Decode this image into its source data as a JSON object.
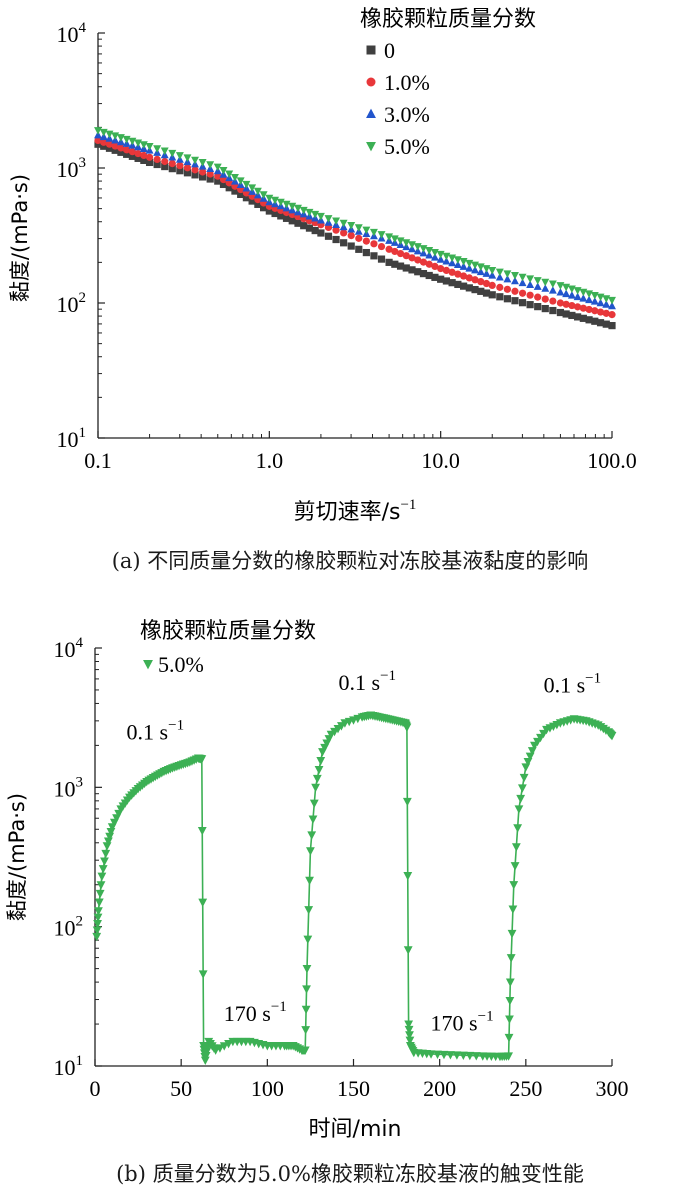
{
  "chart_data": [
    {
      "type": "scatter",
      "panel_caption": "(a) 不同质量分数的橡胶颗粒对冻胶基液黏度的影响",
      "xlabel": "剪切速率/s",
      "xlabel_sup": "−1",
      "ylabel": "黏度/(mPa·s)",
      "xscale": "log",
      "yscale": "log",
      "xlim": [
        0.1,
        100
      ],
      "ylim": [
        10,
        10000
      ],
      "x_ticks": [
        {
          "v": 0.1,
          "label": "0.1"
        },
        {
          "v": 1,
          "label": "1.0"
        },
        {
          "v": 10,
          "label": "10.0"
        },
        {
          "v": 100,
          "label": "100.0"
        }
      ],
      "y_ticks": [
        {
          "v": 10,
          "base": "10",
          "exp": "1"
        },
        {
          "v": 100,
          "base": "10",
          "exp": "2"
        },
        {
          "v": 1000,
          "base": "10",
          "exp": "3"
        },
        {
          "v": 10000,
          "base": "10",
          "exp": "4"
        }
      ],
      "legend_title": "橡胶颗粒质量分数",
      "legend_position": "top-right",
      "series": [
        {
          "name": "0",
          "marker": "square",
          "color": "#404040",
          "points": [
            [
              0.1,
              1500
            ],
            [
              0.2,
              1100
            ],
            [
              0.5,
              800
            ],
            [
              1,
              480
            ],
            [
              2,
              330
            ],
            [
              5,
              200
            ],
            [
              10,
              150
            ],
            [
              20,
              115
            ],
            [
              50,
              85
            ],
            [
              100,
              68
            ]
          ]
        },
        {
          "name": "1.0%",
          "marker": "circle",
          "color": "#e8373a",
          "points": [
            [
              0.1,
              1600
            ],
            [
              0.2,
              1200
            ],
            [
              0.5,
              870
            ],
            [
              1,
              520
            ],
            [
              2,
              380
            ],
            [
              5,
              250
            ],
            [
              10,
              180
            ],
            [
              20,
              135
            ],
            [
              50,
              100
            ],
            [
              100,
              82
            ]
          ]
        },
        {
          "name": "3.0%",
          "marker": "triangle-up",
          "color": "#2255cc",
          "points": [
            [
              0.1,
              1750
            ],
            [
              0.2,
              1350
            ],
            [
              0.5,
              950
            ],
            [
              1,
              560
            ],
            [
              2,
              410
            ],
            [
              5,
              290
            ],
            [
              10,
              210
            ],
            [
              20,
              160
            ],
            [
              50,
              120
            ],
            [
              100,
              95
            ]
          ]
        },
        {
          "name": "5.0%",
          "marker": "triangle-down",
          "color": "#3cb054",
          "points": [
            [
              0.1,
              1900
            ],
            [
              0.2,
              1450
            ],
            [
              0.5,
              1020
            ],
            [
              1,
              600
            ],
            [
              2,
              440
            ],
            [
              5,
              310
            ],
            [
              10,
              230
            ],
            [
              20,
              175
            ],
            [
              50,
              135
            ],
            [
              100,
              105
            ]
          ]
        }
      ]
    },
    {
      "type": "line",
      "panel_caption": "(b) 质量分数为5.0%橡胶颗粒冻胶基液的触变性能",
      "xlabel": "时间/min",
      "ylabel": "黏度/(mPa·s)",
      "xscale": "linear",
      "yscale": "log",
      "xlim": [
        0,
        300
      ],
      "ylim": [
        10,
        10000
      ],
      "x_ticks": [
        {
          "v": 0,
          "label": "0"
        },
        {
          "v": 50,
          "label": "50"
        },
        {
          "v": 100,
          "label": "100"
        },
        {
          "v": 150,
          "label": "150"
        },
        {
          "v": 200,
          "label": "200"
        },
        {
          "v": 250,
          "label": "250"
        },
        {
          "v": 300,
          "label": "300"
        }
      ],
      "y_ticks": [
        {
          "v": 10,
          "base": "10",
          "exp": "1"
        },
        {
          "v": 100,
          "base": "10",
          "exp": "2"
        },
        {
          "v": 1000,
          "base": "10",
          "exp": "3"
        },
        {
          "v": 10000,
          "base": "10",
          "exp": "4"
        }
      ],
      "legend_title": "橡胶颗粒质量分数",
      "legend_position": "top-left",
      "series": [
        {
          "name": "5.0%",
          "marker": "triangle-down",
          "color": "#3cb054",
          "points": [
            [
              1,
              85
            ],
            [
              2,
              130
            ],
            [
              4,
              230
            ],
            [
              7,
              380
            ],
            [
              10,
              520
            ],
            [
              15,
              700
            ],
            [
              20,
              850
            ],
            [
              25,
              980
            ],
            [
              30,
              1100
            ],
            [
              35,
              1200
            ],
            [
              40,
              1300
            ],
            [
              45,
              1380
            ],
            [
              50,
              1450
            ],
            [
              55,
              1520
            ],
            [
              60,
              1620
            ],
            [
              62,
              1600
            ],
            [
              63,
              14
            ],
            [
              64,
              11
            ],
            [
              66,
              15
            ],
            [
              70,
              13
            ],
            [
              80,
              15
            ],
            [
              90,
              15
            ],
            [
              100,
              14
            ],
            [
              110,
              14
            ],
            [
              115,
              14
            ],
            [
              120,
              13
            ],
            [
              122,
              13
            ],
            [
              123,
              50
            ],
            [
              125,
              350
            ],
            [
              128,
              1000
            ],
            [
              132,
              1800
            ],
            [
              137,
              2400
            ],
            [
              145,
              2900
            ],
            [
              155,
              3200
            ],
            [
              160,
              3300
            ],
            [
              165,
              3200
            ],
            [
              170,
              3100
            ],
            [
              175,
              3000
            ],
            [
              180,
              2900
            ],
            [
              181,
              2700
            ],
            [
              182,
              20
            ],
            [
              183,
              14
            ],
            [
              185,
              12.5
            ],
            [
              195,
              12.2
            ],
            [
              210,
              12
            ],
            [
              225,
              11.8
            ],
            [
              235,
              11.7
            ],
            [
              240,
              11.8
            ],
            [
              241,
              40
            ],
            [
              243,
              200
            ],
            [
              246,
              700
            ],
            [
              250,
              1400
            ],
            [
              255,
              2000
            ],
            [
              262,
              2600
            ],
            [
              270,
              2900
            ],
            [
              278,
              3100
            ],
            [
              285,
              3000
            ],
            [
              292,
              2800
            ],
            [
              298,
              2500
            ],
            [
              300,
              2350
            ]
          ]
        }
      ],
      "annotations": [
        {
          "text": "0.1 s",
          "sup": "−1",
          "x": 35,
          "y": 2200
        },
        {
          "text": "170 s",
          "sup": "−1",
          "x": 93,
          "y": 21
        },
        {
          "text": "0.1 s",
          "sup": "−1",
          "x": 158,
          "y": 5000
        },
        {
          "text": "170 s",
          "sup": "−1",
          "x": 213,
          "y": 18
        },
        {
          "text": "0.1 s",
          "sup": "−1",
          "x": 277,
          "y": 4800
        }
      ]
    }
  ]
}
